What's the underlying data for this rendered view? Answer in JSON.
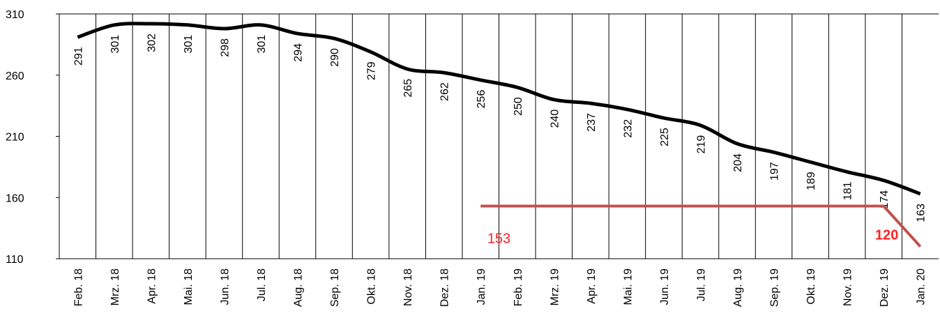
{
  "chart_data": {
    "type": "line",
    "categories": [
      "Feb. 18",
      "Mrz. 18",
      "Apr. 18",
      "Mai. 18",
      "Jun. 18",
      "Jul. 18",
      "Aug. 18",
      "Sep. 18",
      "Okt. 18",
      "Nov. 18",
      "Dez. 18",
      "Jan. 19",
      "Feb. 19",
      "Mrz. 19",
      "Apr. 19",
      "Mai. 19",
      "Jun. 19",
      "Jul. 19",
      "Aug. 19",
      "Sep. 19",
      "Okt. 19",
      "Nov. 19",
      "Dez. 19",
      "Jan. 20"
    ],
    "series": [
      {
        "color": "#000000",
        "values": [
          291,
          301,
          302,
          301,
          298,
          301,
          294,
          290,
          279,
          265,
          262,
          256,
          250,
          240,
          237,
          232,
          225,
          219,
          204,
          197,
          189,
          181,
          174,
          163
        ]
      },
      {
        "color": "#c0504d",
        "values": [
          null,
          null,
          null,
          null,
          null,
          null,
          null,
          null,
          null,
          null,
          null,
          153,
          153,
          153,
          153,
          153,
          153,
          153,
          153,
          153,
          153,
          153,
          153,
          120
        ]
      }
    ],
    "ylim": [
      110,
      310
    ],
    "yticks": [
      110,
      160,
      210,
      260,
      310
    ]
  }
}
